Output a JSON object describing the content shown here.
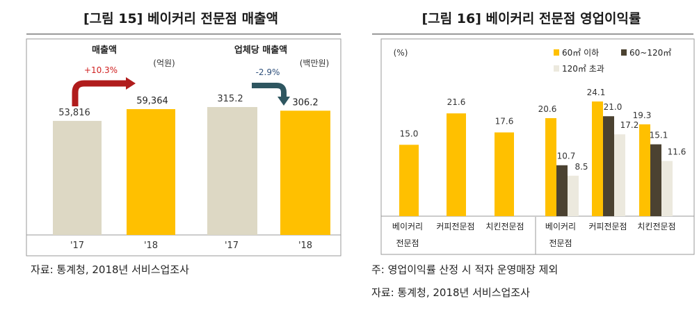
{
  "left": {
    "title": "[그림 15] 베이커리 전문점 매출액",
    "source": "자료: 통계청, 2018년 서비스업조사",
    "panels": [
      {
        "title": "매출액",
        "unit": "(억원)",
        "change": "+10.3%",
        "categories": [
          "'17",
          "'18"
        ],
        "values": [
          53816,
          59364
        ],
        "value_labels": [
          "53,816",
          "59,364"
        ],
        "ylim": [
          0,
          70000
        ]
      },
      {
        "title": "업체당 매출액",
        "unit": "(백만원)",
        "change": "-2.9%",
        "categories": [
          "'17",
          "'18"
        ],
        "values": [
          315.2,
          306.2
        ],
        "value_labels": [
          "315.2",
          "306.2"
        ],
        "ylim": [
          0,
          370
        ]
      }
    ]
  },
  "right": {
    "title": "[그림 16] 베이커리 전문점 영업이익률",
    "unit": "(%)",
    "note": "주: 영업이익률 산정 시 적자 운영매장 제외",
    "source": "자료: 통계청, 2018년 서비스업조사",
    "legend": [
      "60㎡ 이하",
      "60~120㎡",
      "120㎡ 초과"
    ]
  },
  "colors": {
    "prev_year": "#ddd8c4",
    "curr_year": "#ffc000",
    "small": "#ffc000",
    "medium": "#4b4231",
    "large": "#ece9de",
    "up_arrow": "#b01c1c",
    "down_arrow": "#2e5660",
    "change_up": "#d02020",
    "change_down": "#2e4f7a"
  },
  "chart_data": [
    {
      "type": "bar",
      "title": "매출액",
      "unit": "억원",
      "categories": [
        "'17",
        "'18"
      ],
      "values": [
        53816,
        59364
      ],
      "change": "+10.3%"
    },
    {
      "type": "bar",
      "title": "업체당 매출액",
      "unit": "백만원",
      "categories": [
        "'17",
        "'18"
      ],
      "values": [
        315.2,
        306.2
      ],
      "change": "-2.9%"
    },
    {
      "type": "bar",
      "unit": "%",
      "categories": [
        [
          "베이커리",
          "전문점"
        ],
        [
          "커피전문점"
        ],
        [
          "치킨전문점"
        ]
      ],
      "series": [
        {
          "values": [
            15.0,
            21.6,
            17.6
          ]
        }
      ],
      "value_labels": [
        "15.0",
        "21.6",
        "17.6"
      ],
      "ylim": [
        0,
        26
      ]
    },
    {
      "type": "bar",
      "unit": "%",
      "categories": [
        [
          "베이커리",
          "전문점"
        ],
        [
          "커피전문점"
        ],
        [
          "치킨전문점"
        ]
      ],
      "series": [
        {
          "name": "60㎡ 이하",
          "values": [
            20.6,
            24.1,
            19.3
          ]
        },
        {
          "name": "60~120㎡",
          "values": [
            10.7,
            21.0,
            15.1
          ]
        },
        {
          "name": "120㎡ 초과",
          "values": [
            8.5,
            17.2,
            11.6
          ]
        }
      ],
      "value_labels": [
        [
          "20.6",
          "24.1",
          "19.3"
        ],
        [
          "10.7",
          "21.0",
          "15.1"
        ],
        [
          "8.5",
          "17.2",
          "11.6"
        ]
      ],
      "ylim": [
        0,
        26
      ]
    }
  ]
}
